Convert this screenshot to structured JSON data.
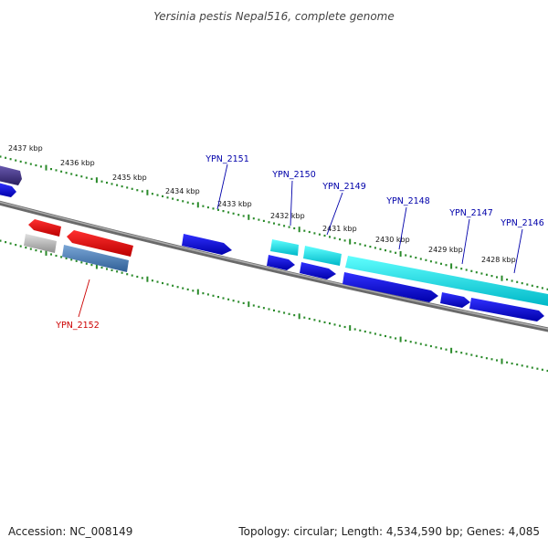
{
  "title": "Yersinia pestis Nepal516, complete genome",
  "footer": {
    "accession": "Accession: NC_008149",
    "summary": "Topology: circular; Length: 4,534,590 bp; Genes: 4,085"
  },
  "colors": {
    "backbone": "#808080",
    "tick": "#2a8a2a",
    "forward_gene": "#0000dd",
    "forward_label": "#0000aa",
    "cds_cyan": "#00dddd",
    "reverse_gene": "#ee0000",
    "reverse_label": "#cc0000",
    "reverse_blue": "#4a7ab0",
    "grey_feature": "#b0b0b0",
    "purple_feature": "#4a3a8a"
  },
  "scale_labels": [
    "2437 kbp",
    "2436 kbp",
    "2435 kbp",
    "2434 kbp",
    "2433 kbp",
    "2432 kbp",
    "2431 kbp",
    "2430 kbp",
    "2429 kbp",
    "2428 kbp"
  ],
  "gene_labels": [
    {
      "text": "YPN_2151",
      "strand": "forward"
    },
    {
      "text": "YPN_2150",
      "strand": "forward"
    },
    {
      "text": "YPN_2149",
      "strand": "forward"
    },
    {
      "text": "YPN_2148",
      "strand": "forward"
    },
    {
      "text": "YPN_2147",
      "strand": "forward"
    },
    {
      "text": "YPN_2146",
      "strand": "forward"
    },
    {
      "text": "YPN_2152",
      "strand": "reverse"
    }
  ]
}
